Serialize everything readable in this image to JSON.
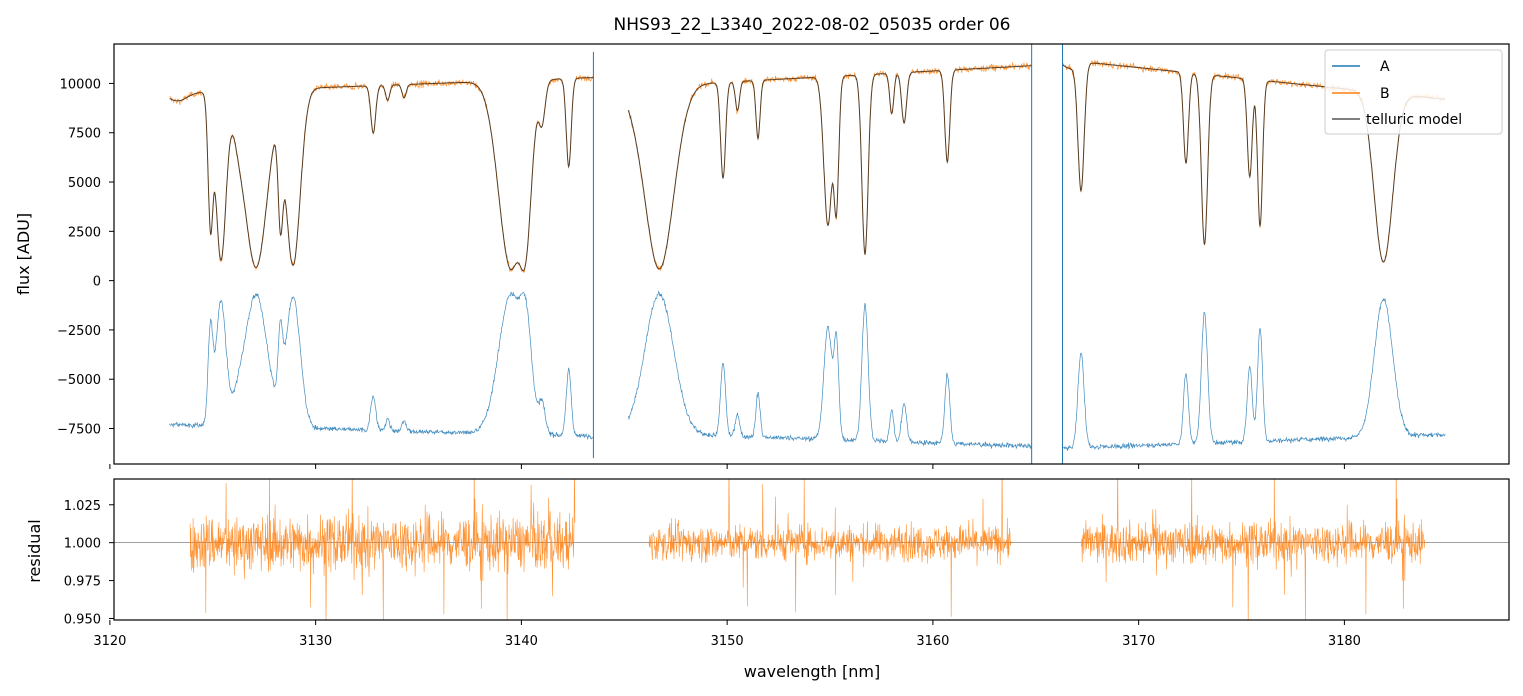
{
  "chart_data": [
    {
      "type": "line",
      "title": "NHS93_22_L3340_2022-08-02_05035  order 06",
      "xlabel": "",
      "ylabel": "flux [ADU]",
      "xlim": [
        3120.2,
        3188.0
      ],
      "ylim": [
        -9300,
        12000
      ],
      "yticks": [
        10000,
        7500,
        5000,
        2500,
        0,
        -2500,
        -5000,
        -7500
      ],
      "ytick_labels": [
        "10000",
        "7500",
        "5000",
        "2500",
        "0",
        "−2500",
        "−5000",
        "−7500"
      ],
      "xticks": [
        3120,
        3130,
        3140,
        3150,
        3160,
        3170,
        3180
      ],
      "legend": {
        "placement": "top-right",
        "entries": [
          {
            "label": "A",
            "color": "#1f77b4"
          },
          {
            "label": "B",
            "color": "#ff7f0e"
          },
          {
            "label": "telluric model",
            "color": "#555555"
          }
        ]
      },
      "segments": [
        {
          "x_range": [
            3122.9,
            3143.5
          ],
          "continuum_B": [
            9500,
            10300
          ],
          "continuum_A": [
            -7300,
            -7900
          ]
        },
        {
          "x_range": [
            3145.2,
            3164.8
          ],
          "continuum_B": [
            9800,
            10900
          ],
          "continuum_A": [
            -7700,
            -8400
          ]
        },
        {
          "x_range": [
            3166.3,
            3184.9
          ],
          "continuum_B": [
            11200,
            9200
          ],
          "continuum_A": [
            -8500,
            -7800
          ]
        }
      ],
      "absorption_lines": [
        {
          "x": 3124.9,
          "depth": 0.75,
          "width": 0.12
        },
        {
          "x": 3125.4,
          "depth": 0.92,
          "width": 0.25
        },
        {
          "x": 3126.3,
          "depth": 0.15,
          "width": 0.3
        },
        {
          "x": 3127.1,
          "depth": 0.96,
          "width": 0.55
        },
        {
          "x": 3128.3,
          "depth": 0.7,
          "width": 0.12
        },
        {
          "x": 3128.9,
          "depth": 0.95,
          "width": 0.35
        },
        {
          "x": 3132.8,
          "depth": 0.25,
          "width": 0.12
        },
        {
          "x": 3133.5,
          "depth": 0.08,
          "width": 0.1
        },
        {
          "x": 3134.3,
          "depth": 0.07,
          "width": 0.1
        },
        {
          "x": 3139.5,
          "depth": 0.97,
          "width": 0.6
        },
        {
          "x": 3140.1,
          "depth": 0.95,
          "width": 0.3
        },
        {
          "x": 3141.0,
          "depth": 0.2,
          "width": 0.15
        },
        {
          "x": 3142.3,
          "depth": 0.45,
          "width": 0.12
        },
        {
          "x": 3146.7,
          "depth": 0.97,
          "width": 0.7
        },
        {
          "x": 3149.8,
          "depth": 0.5,
          "width": 0.12
        },
        {
          "x": 3150.5,
          "depth": 0.15,
          "width": 0.1
        },
        {
          "x": 3151.5,
          "depth": 0.3,
          "width": 0.1
        },
        {
          "x": 3154.9,
          "depth": 0.75,
          "width": 0.2
        },
        {
          "x": 3155.3,
          "depth": 0.68,
          "width": 0.12
        },
        {
          "x": 3156.7,
          "depth": 0.9,
          "width": 0.15
        },
        {
          "x": 3158.0,
          "depth": 0.2,
          "width": 0.1
        },
        {
          "x": 3158.6,
          "depth": 0.25,
          "width": 0.12
        },
        {
          "x": 3160.7,
          "depth": 0.45,
          "width": 0.12
        },
        {
          "x": 3167.2,
          "depth": 0.6,
          "width": 0.15
        },
        {
          "x": 3172.3,
          "depth": 0.45,
          "width": 0.12
        },
        {
          "x": 3173.2,
          "depth": 0.85,
          "width": 0.15
        },
        {
          "x": 3175.4,
          "depth": 0.5,
          "width": 0.12
        },
        {
          "x": 3175.9,
          "depth": 0.75,
          "width": 0.12
        },
        {
          "x": 3181.9,
          "depth": 0.93,
          "width": 0.45
        }
      ]
    },
    {
      "type": "line",
      "title": "",
      "xlabel": "wavelength [nm]",
      "ylabel": "residual",
      "xlim": [
        3120.2,
        3188.0
      ],
      "ylim": [
        0.949,
        1.042
      ],
      "yticks": [
        1.025,
        1.0,
        0.975,
        0.95
      ],
      "ytick_labels": [
        "1.025",
        "1.000",
        "0.975",
        "0.950"
      ],
      "xticks": [
        3120,
        3130,
        3140,
        3150,
        3160,
        3170,
        3180
      ],
      "xtick_labels": [
        "3120",
        "3130",
        "3140",
        "3150",
        "3160",
        "3170",
        "3180"
      ],
      "reference_line": 1.0,
      "series": [
        {
          "color": "#ff7f0e"
        }
      ],
      "segments": [
        {
          "x_range": [
            3123.9,
            3142.6
          ],
          "scatter": 0.022
        },
        {
          "x_range": [
            3146.2,
            3163.8
          ],
          "scatter": 0.014
        },
        {
          "x_range": [
            3167.2,
            3183.9
          ],
          "scatter": 0.016
        }
      ]
    }
  ]
}
